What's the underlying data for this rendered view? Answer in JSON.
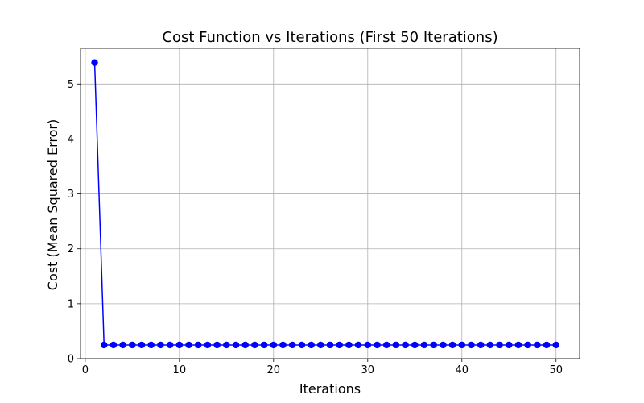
{
  "chart_data": {
    "type": "line",
    "title": "Cost Function vs Iterations (First 50 Iterations)",
    "xlabel": "Iterations",
    "ylabel": "Cost (Mean Squared Error)",
    "xlim": [
      -0.5,
      52.5
    ],
    "ylim": [
      0,
      5.65
    ],
    "xticks": [
      0,
      10,
      20,
      30,
      40,
      50
    ],
    "yticks": [
      0,
      1,
      2,
      3,
      4,
      5
    ],
    "grid": true,
    "series": [
      {
        "color": "#0000ff",
        "marker": "circle",
        "x": [
          1,
          2,
          3,
          4,
          5,
          6,
          7,
          8,
          9,
          10,
          11,
          12,
          13,
          14,
          15,
          16,
          17,
          18,
          19,
          20,
          21,
          22,
          23,
          24,
          25,
          26,
          27,
          28,
          29,
          30,
          31,
          32,
          33,
          34,
          35,
          36,
          37,
          38,
          39,
          40,
          41,
          42,
          43,
          44,
          45,
          46,
          47,
          48,
          49,
          50
        ],
        "values": [
          5.39,
          0.25,
          0.25,
          0.25,
          0.25,
          0.25,
          0.25,
          0.25,
          0.25,
          0.25,
          0.25,
          0.25,
          0.25,
          0.25,
          0.25,
          0.25,
          0.25,
          0.25,
          0.25,
          0.25,
          0.25,
          0.25,
          0.25,
          0.25,
          0.25,
          0.25,
          0.25,
          0.25,
          0.25,
          0.25,
          0.25,
          0.25,
          0.25,
          0.25,
          0.25,
          0.25,
          0.25,
          0.25,
          0.25,
          0.25,
          0.25,
          0.25,
          0.25,
          0.25,
          0.25,
          0.25,
          0.25,
          0.25,
          0.25,
          0.25
        ]
      }
    ]
  }
}
